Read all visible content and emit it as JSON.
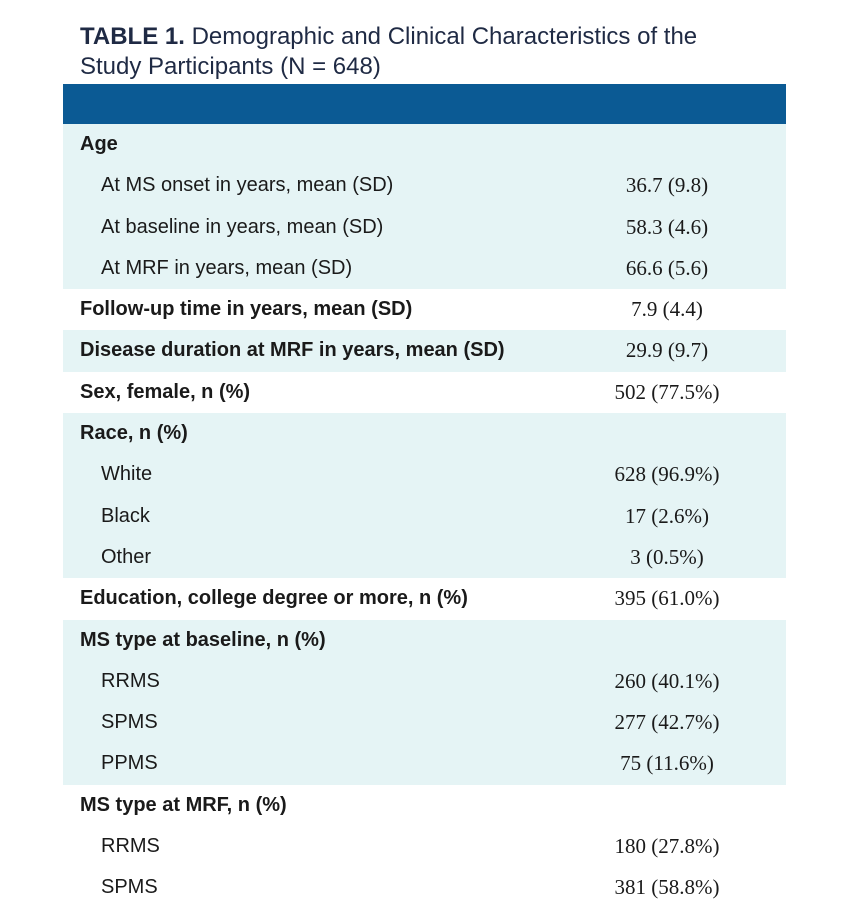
{
  "title": {
    "label": "TABLE 1.",
    "text": "Demographic and Clinical Characteristics of the Study Participants (N = 648)"
  },
  "table": {
    "groups": [
      {
        "label": "Age",
        "items": [
          {
            "label": "At MS onset in years, mean (SD)",
            "value": "36.7 (9.8)"
          },
          {
            "label": "At baseline in years, mean (SD)",
            "value": "58.3 (4.6)"
          },
          {
            "label": "At MRF in years, mean (SD)",
            "value": "66.6 (5.6)"
          }
        ]
      },
      {
        "label": "Follow-up time in years, mean (SD)",
        "value": "7.9 (4.4)"
      },
      {
        "label": "Disease duration at MRF in years, mean (SD)",
        "value": "29.9 (9.7)"
      },
      {
        "label": "Sex, female, n (%)",
        "value": "502 (77.5%)"
      },
      {
        "label": "Race, n (%)",
        "items": [
          {
            "label": "White",
            "value": "628 (96.9%)"
          },
          {
            "label": "Black",
            "value": "17 (2.6%)"
          },
          {
            "label": "Other",
            "value": "3 (0.5%)"
          }
        ]
      },
      {
        "label": "Education, college degree or more, n (%)",
        "value": "395 (61.0%)"
      },
      {
        "label": "MS type at baseline, n (%)",
        "items": [
          {
            "label": "RRMS",
            "value": "260 (40.1%)"
          },
          {
            "label": "SPMS",
            "value": "277 (42.7%)"
          },
          {
            "label": "PPMS",
            "value": "75 (11.6%)"
          }
        ]
      },
      {
        "label": "MS type at MRF, n (%)",
        "items": [
          {
            "label": "RRMS",
            "value": "180 (27.8%)"
          },
          {
            "label": "SPMS",
            "value": "381 (58.8%)"
          }
        ]
      }
    ]
  }
}
